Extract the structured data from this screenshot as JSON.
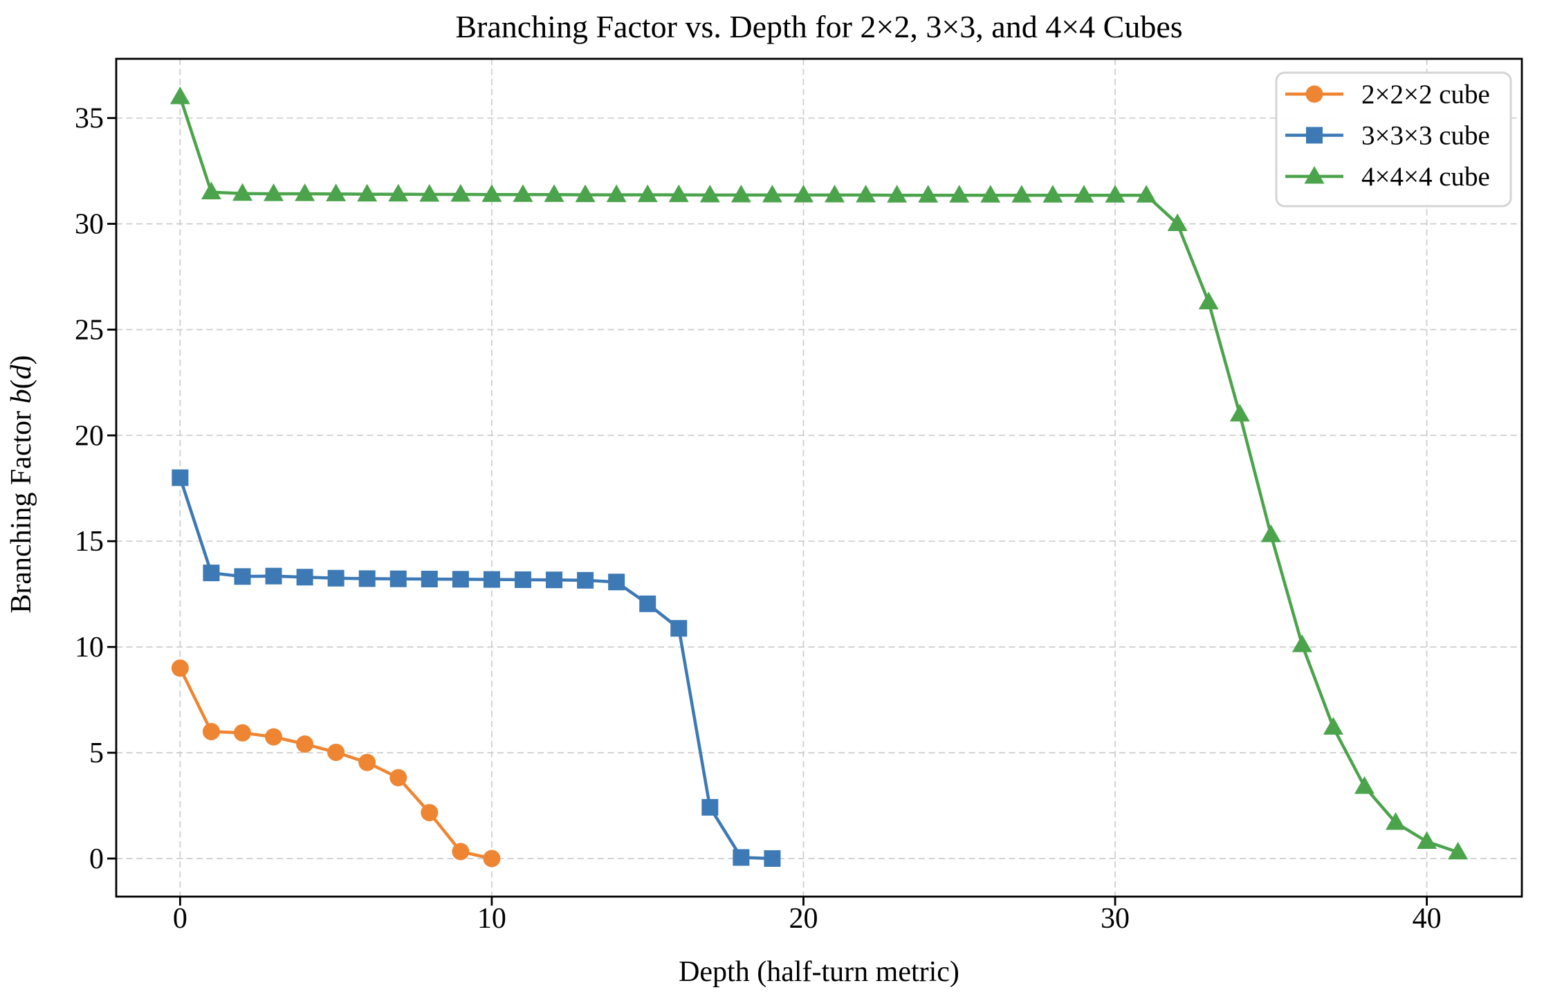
{
  "page": {
    "background": "#ffffff"
  },
  "chart_data": {
    "type": "line",
    "title": "Branching Factor vs. Depth for 2×2, 3×3, and 4×4 Cubes",
    "xlabel": "Depth (half-turn metric)",
    "ylabel": "Branching Factor b(d)",
    "ylabel_segments": [
      {
        "text": "Branching Factor ",
        "italic": false
      },
      {
        "text": "b",
        "italic": true
      },
      {
        "text": "(",
        "italic": false
      },
      {
        "text": "d",
        "italic": true
      },
      {
        "text": ")",
        "italic": false
      }
    ],
    "xlim": [
      -2.05,
      43.05
    ],
    "ylim": [
      -1.8,
      37.8
    ],
    "xticks": [
      0,
      10,
      20,
      30,
      40
    ],
    "yticks": [
      0,
      5,
      10,
      15,
      20,
      25,
      30,
      35
    ],
    "grid": true,
    "grid_style": "dashed",
    "grid_color": "#c9c9c9",
    "legend": {
      "position": "upper right",
      "border_color": "#d4d4d4",
      "background": "#ffffff"
    },
    "series": [
      {
        "id": "cube-2x2x2",
        "name": "2×2×2 cube",
        "color": "#ee8532",
        "marker": "circle",
        "x": [
          0,
          1,
          2,
          3,
          4,
          5,
          6,
          7,
          8,
          9,
          10
        ],
        "values": [
          9.0,
          6.0,
          5.94,
          5.75,
          5.41,
          5.02,
          4.54,
          3.82,
          2.17,
          0.33,
          0.0
        ]
      },
      {
        "id": "cube-3x3x3",
        "name": "3×3×3 cube",
        "color": "#3c79b5",
        "marker": "square",
        "x": [
          0,
          1,
          2,
          3,
          4,
          5,
          6,
          7,
          8,
          9,
          10,
          11,
          12,
          13,
          14,
          15,
          16,
          17,
          18,
          19
        ],
        "values": [
          18.0,
          13.5,
          13.33,
          13.35,
          13.3,
          13.25,
          13.23,
          13.22,
          13.21,
          13.2,
          13.19,
          13.18,
          13.17,
          13.15,
          13.07,
          12.04,
          10.88,
          2.42,
          0.05,
          0.0
        ]
      },
      {
        "id": "cube-4x4x4",
        "name": "4×4×4 cube",
        "color": "#4ba44b",
        "marker": "triangle",
        "x": [
          0,
          1,
          2,
          3,
          4,
          5,
          6,
          7,
          8,
          9,
          10,
          11,
          12,
          13,
          14,
          15,
          16,
          17,
          18,
          19,
          20,
          21,
          22,
          23,
          24,
          25,
          26,
          27,
          28,
          29,
          30,
          31,
          32,
          33,
          34,
          35,
          36,
          37,
          38,
          39,
          40,
          41
        ],
        "values": [
          36.0,
          31.5,
          31.43,
          31.42,
          31.42,
          31.41,
          31.4,
          31.4,
          31.39,
          31.39,
          31.38,
          31.38,
          31.38,
          31.37,
          31.37,
          31.37,
          31.37,
          31.36,
          31.36,
          31.36,
          31.36,
          31.36,
          31.36,
          31.35,
          31.35,
          31.35,
          31.35,
          31.35,
          31.35,
          31.35,
          31.35,
          31.35,
          30.0,
          26.3,
          21.0,
          15.3,
          10.1,
          6.2,
          3.4,
          1.7,
          0.8,
          0.3
        ]
      }
    ]
  }
}
